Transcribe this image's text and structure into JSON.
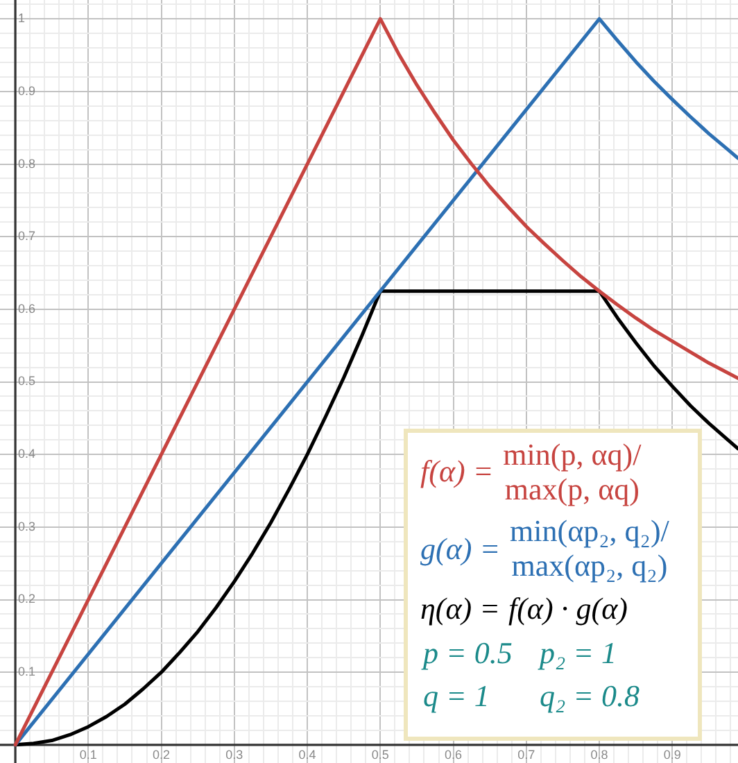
{
  "chart_data": {
    "type": "line",
    "xlim": [
      -0.021,
      0.99
    ],
    "ylim": [
      -0.025,
      1.026
    ],
    "xticks": [
      {
        "value": 0,
        "label": null
      },
      {
        "value": 0.02,
        "label": null
      },
      {
        "value": 0.04,
        "label": null
      },
      {
        "value": 0.06,
        "label": null
      },
      {
        "value": 0.08,
        "label": null
      },
      0.1,
      {
        "value": 0.12,
        "label": null
      },
      {
        "value": 0.14,
        "label": null
      },
      {
        "value": 0.16,
        "label": null
      },
      {
        "value": 0.18,
        "label": null
      },
      0.2,
      {
        "value": 0.22,
        "label": null
      },
      {
        "value": 0.24,
        "label": null
      },
      {
        "value": 0.26,
        "label": null
      },
      {
        "value": 0.28,
        "label": null
      },
      0.3,
      {
        "value": 0.32,
        "label": null
      },
      {
        "value": 0.34,
        "label": null
      },
      {
        "value": 0.36,
        "label": null
      },
      {
        "value": 0.38,
        "label": null
      },
      0.4,
      {
        "value": 0.42,
        "label": null
      },
      {
        "value": 0.44,
        "label": null
      },
      {
        "value": 0.46,
        "label": null
      },
      {
        "value": 0.48,
        "label": null
      },
      0.5,
      {
        "value": 0.52,
        "label": null
      },
      {
        "value": 0.54,
        "label": null
      },
      {
        "value": 0.56,
        "label": null
      },
      {
        "value": 0.58,
        "label": null
      },
      0.6,
      {
        "value": 0.62,
        "label": null
      },
      {
        "value": 0.64,
        "label": null
      },
      {
        "value": 0.66,
        "label": null
      },
      {
        "value": 0.68,
        "label": null
      },
      0.7,
      {
        "value": 0.72,
        "label": null
      },
      {
        "value": 0.74,
        "label": null
      },
      {
        "value": 0.76,
        "label": null
      },
      {
        "value": 0.78,
        "label": null
      },
      0.8,
      {
        "value": 0.82,
        "label": null
      },
      {
        "value": 0.84,
        "label": null
      },
      {
        "value": 0.86,
        "label": null
      },
      {
        "value": 0.88,
        "label": null
      },
      0.9,
      {
        "value": 0.92,
        "label": null
      },
      {
        "value": 0.94,
        "label": null
      },
      {
        "value": 0.96,
        "label": null
      },
      {
        "value": 0.98,
        "label": null
      }
    ],
    "yticks": [
      {
        "value": 0,
        "label": null
      },
      {
        "value": 0.02,
        "label": null
      },
      {
        "value": 0.04,
        "label": null
      },
      {
        "value": 0.06,
        "label": null
      },
      {
        "value": 0.08,
        "label": null
      },
      0.1,
      {
        "value": 0.12,
        "label": null
      },
      {
        "value": 0.14,
        "label": null
      },
      {
        "value": 0.16,
        "label": null
      },
      {
        "value": 0.18,
        "label": null
      },
      0.2,
      {
        "value": 0.22,
        "label": null
      },
      {
        "value": 0.24,
        "label": null
      },
      {
        "value": 0.26,
        "label": null
      },
      {
        "value": 0.28,
        "label": null
      },
      0.3,
      {
        "value": 0.32,
        "label": null
      },
      {
        "value": 0.34,
        "label": null
      },
      {
        "value": 0.36,
        "label": null
      },
      {
        "value": 0.38,
        "label": null
      },
      0.4,
      {
        "value": 0.42,
        "label": null
      },
      {
        "value": 0.44,
        "label": null
      },
      {
        "value": 0.46,
        "label": null
      },
      {
        "value": 0.48,
        "label": null
      },
      0.5,
      {
        "value": 0.52,
        "label": null
      },
      {
        "value": 0.54,
        "label": null
      },
      {
        "value": 0.56,
        "label": null
      },
      {
        "value": 0.58,
        "label": null
      },
      0.6,
      {
        "value": 0.62,
        "label": null
      },
      {
        "value": 0.64,
        "label": null
      },
      {
        "value": 0.66,
        "label": null
      },
      {
        "value": 0.68,
        "label": null
      },
      0.7,
      {
        "value": 0.72,
        "label": null
      },
      {
        "value": 0.74,
        "label": null
      },
      {
        "value": 0.76,
        "label": null
      },
      {
        "value": 0.78,
        "label": null
      },
      0.8,
      {
        "value": 0.82,
        "label": null
      },
      {
        "value": 0.84,
        "label": null
      },
      {
        "value": 0.86,
        "label": null
      },
      {
        "value": 0.88,
        "label": null
      },
      0.9,
      {
        "value": 0.92,
        "label": null
      },
      {
        "value": 0.94,
        "label": null
      },
      {
        "value": 0.96,
        "label": null
      },
      {
        "value": 0.98,
        "label": null
      },
      1,
      {
        "value": 1.02,
        "label": null
      }
    ],
    "series": [
      {
        "name": "f(α) = min(p, αq)/max(p, αq)",
        "color": "#c74440",
        "x": [
          0,
          0.5,
          0.525,
          0.55,
          0.575,
          0.6,
          0.625,
          0.65,
          0.675,
          0.7,
          0.725,
          0.75,
          0.775,
          0.8,
          0.825,
          0.85,
          0.875,
          0.9,
          0.925,
          0.95,
          0.975,
          0.99
        ],
        "values": [
          0,
          1,
          0.952,
          0.909,
          0.87,
          0.833,
          0.8,
          0.769,
          0.741,
          0.714,
          0.69,
          0.667,
          0.645,
          0.625,
          0.606,
          0.588,
          0.571,
          0.556,
          0.541,
          0.526,
          0.513,
          0.505
        ]
      },
      {
        "name": "g(α) = min(αp₂, q₂)/max(αp₂, q₂)",
        "color": "#2d70b3",
        "x": [
          0,
          0.8,
          0.825,
          0.85,
          0.875,
          0.9,
          0.925,
          0.95,
          0.975,
          0.99
        ],
        "values": [
          0,
          1,
          0.97,
          0.941,
          0.914,
          0.889,
          0.865,
          0.842,
          0.821,
          0.808
        ]
      },
      {
        "name": "η(α) = f(α) · g(α)",
        "color": "#000000",
        "x": [
          0,
          0.025,
          0.05,
          0.075,
          0.1,
          0.125,
          0.15,
          0.175,
          0.2,
          0.225,
          0.25,
          0.275,
          0.3,
          0.325,
          0.35,
          0.375,
          0.4,
          0.425,
          0.45,
          0.475,
          0.5,
          0.8,
          0.825,
          0.85,
          0.875,
          0.9,
          0.925,
          0.95,
          0.975,
          0.99
        ],
        "values": [
          0,
          0.002,
          0.006,
          0.014,
          0.025,
          0.039,
          0.056,
          0.077,
          0.1,
          0.127,
          0.156,
          0.189,
          0.225,
          0.264,
          0.306,
          0.352,
          0.4,
          0.452,
          0.506,
          0.564,
          0.625,
          0.625,
          0.588,
          0.554,
          0.522,
          0.494,
          0.467,
          0.443,
          0.421,
          0.408
        ]
      }
    ],
    "annotations": [
      "p = 0.5",
      "p₂ = 1",
      "q = 1",
      "q₂ = 0.8"
    ],
    "grid": true,
    "marker": "none",
    "line_style": "solid"
  }
}
